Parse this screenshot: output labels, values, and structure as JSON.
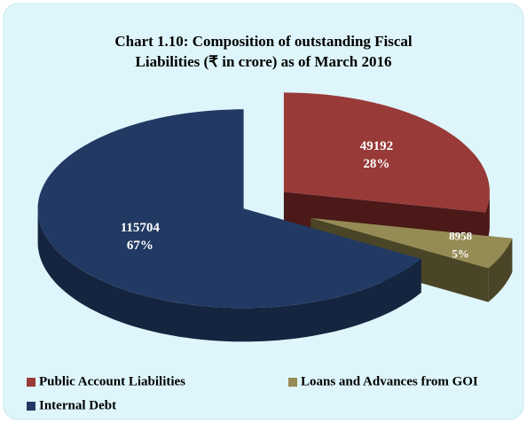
{
  "chart_data": {
    "type": "pie",
    "title": [
      "Chart 1.10: Composition of outstanding Fiscal",
      "Liabilities (₹ in crore) as of March 2016"
    ],
    "categories": [
      "Public Account Liabilities",
      "Loans and Advances from GOI",
      "Internal Debt"
    ],
    "values": [
      49192,
      8958,
      115704
    ],
    "percent_labels": [
      "28%",
      "5%",
      "67%"
    ],
    "colors": [
      "#983a38",
      "#958b55",
      "#223a63"
    ],
    "side_colors": [
      "#4b1918",
      "#4b4527",
      "#15243f"
    ],
    "legend": "bottom"
  }
}
